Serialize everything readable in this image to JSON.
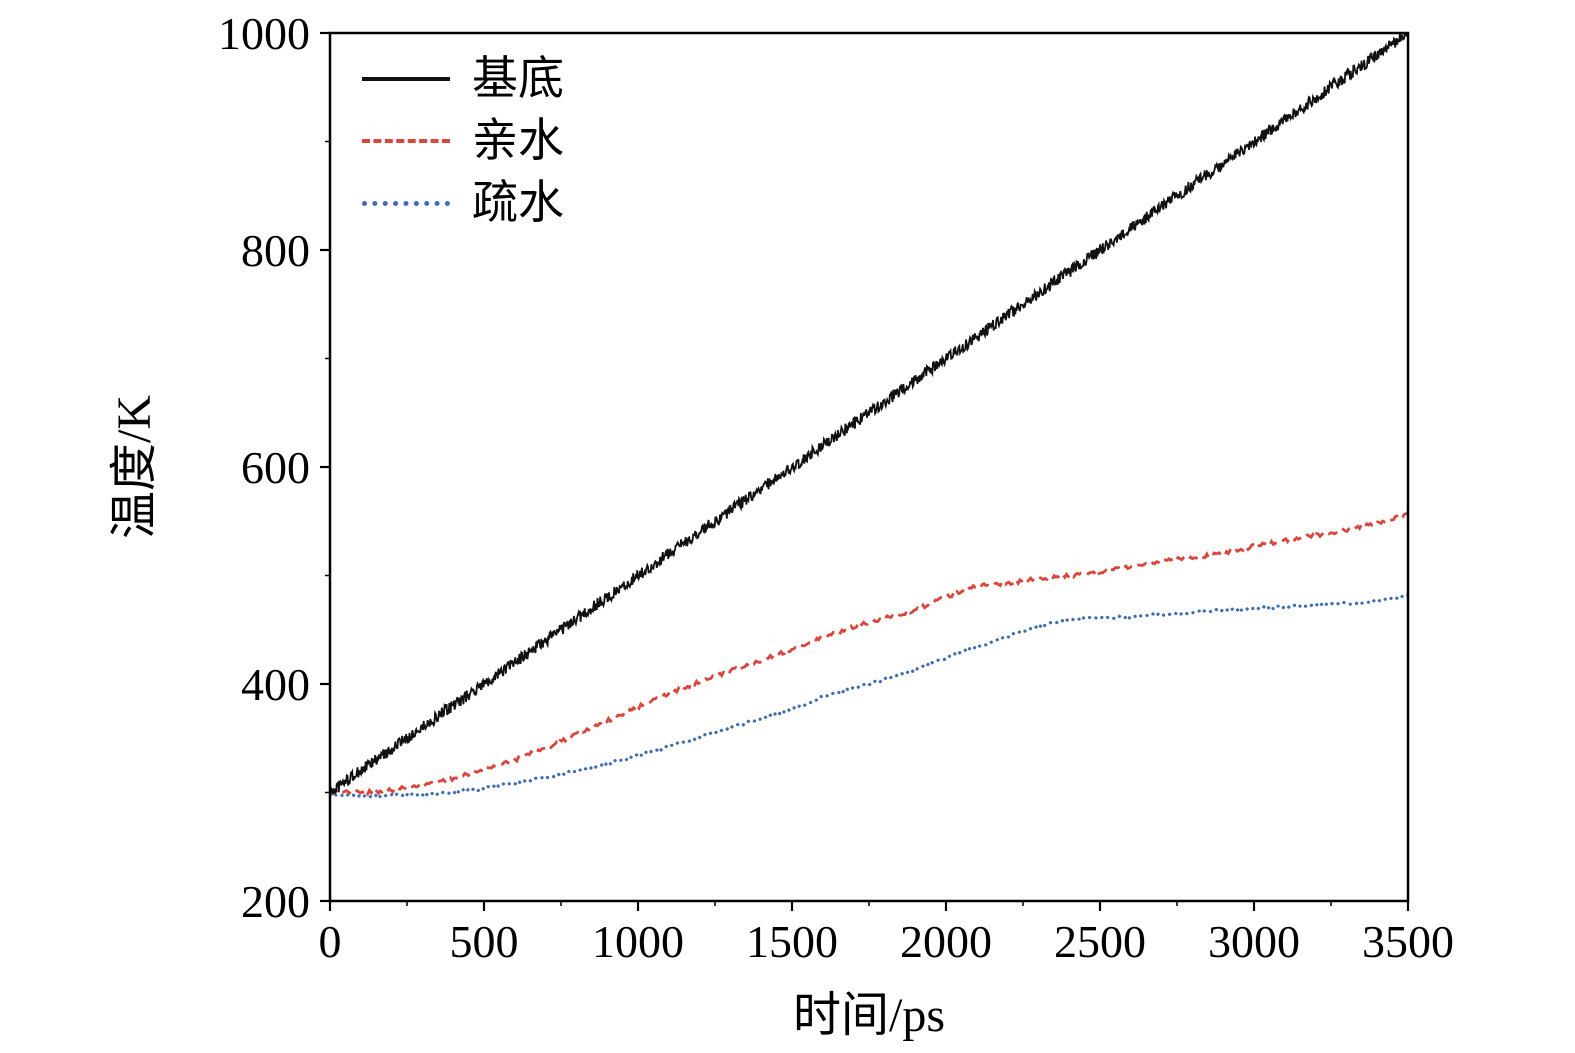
{
  "figure": {
    "background": "#ffffff",
    "frame_color": "#000000"
  },
  "chart_data": {
    "type": "line",
    "title": "",
    "xlabel": "时间/ps",
    "ylabel": "温度/K",
    "xlim": [
      0,
      3500
    ],
    "ylim": [
      200,
      1000
    ],
    "x_ticks": [
      0,
      500,
      1000,
      1500,
      2000,
      2500,
      3000,
      3500
    ],
    "y_ticks": [
      200,
      400,
      600,
      800,
      1000
    ],
    "x_minor_step": 250,
    "y_minor_step": 100,
    "grid": false,
    "legend_position": "upper-left",
    "x": [
      0,
      100,
      200,
      300,
      400,
      500,
      600,
      700,
      800,
      900,
      1000,
      1100,
      1200,
      1300,
      1400,
      1500,
      1600,
      1700,
      1800,
      1900,
      2000,
      2100,
      2200,
      2300,
      2400,
      2500,
      2600,
      2700,
      2800,
      2900,
      3000,
      3100,
      3200,
      3300,
      3400,
      3500
    ],
    "series": [
      {
        "name": "基底",
        "color": "#111111",
        "style": "solid",
        "noise": 5.5,
        "y": [
          300,
          320,
          340,
          360,
          380,
          400,
          420,
          440,
          460,
          480,
          500,
          520,
          540,
          560,
          580,
          600,
          620,
          640,
          660,
          680,
          700,
          720,
          740,
          760,
          780,
          800,
          820,
          840,
          860,
          880,
          900,
          920,
          940,
          960,
          980,
          1000
        ]
      },
      {
        "name": "亲水",
        "color": "#d9473c",
        "style": "dashed",
        "noise": 1.8,
        "y": [
          300,
          300,
          302,
          307,
          313,
          321,
          330,
          341,
          353,
          366,
          379,
          391,
          402,
          412,
          422,
          432,
          443,
          453,
          461,
          468,
          480,
          490,
          493,
          497,
          500,
          503,
          508,
          513,
          517,
          520,
          527,
          532,
          537,
          542,
          548,
          557
        ]
      },
      {
        "name": "疏水",
        "color": "#3f6cb3",
        "style": "dotted",
        "noise": 1.4,
        "y": [
          298,
          297,
          297,
          298,
          300,
          304,
          309,
          314,
          320,
          327,
          334,
          342,
          351,
          360,
          368,
          377,
          388,
          396,
          404,
          413,
          424,
          434,
          444,
          453,
          459,
          461,
          462,
          464,
          466,
          468,
          470,
          471,
          473,
          474,
          477,
          481
        ]
      }
    ]
  }
}
